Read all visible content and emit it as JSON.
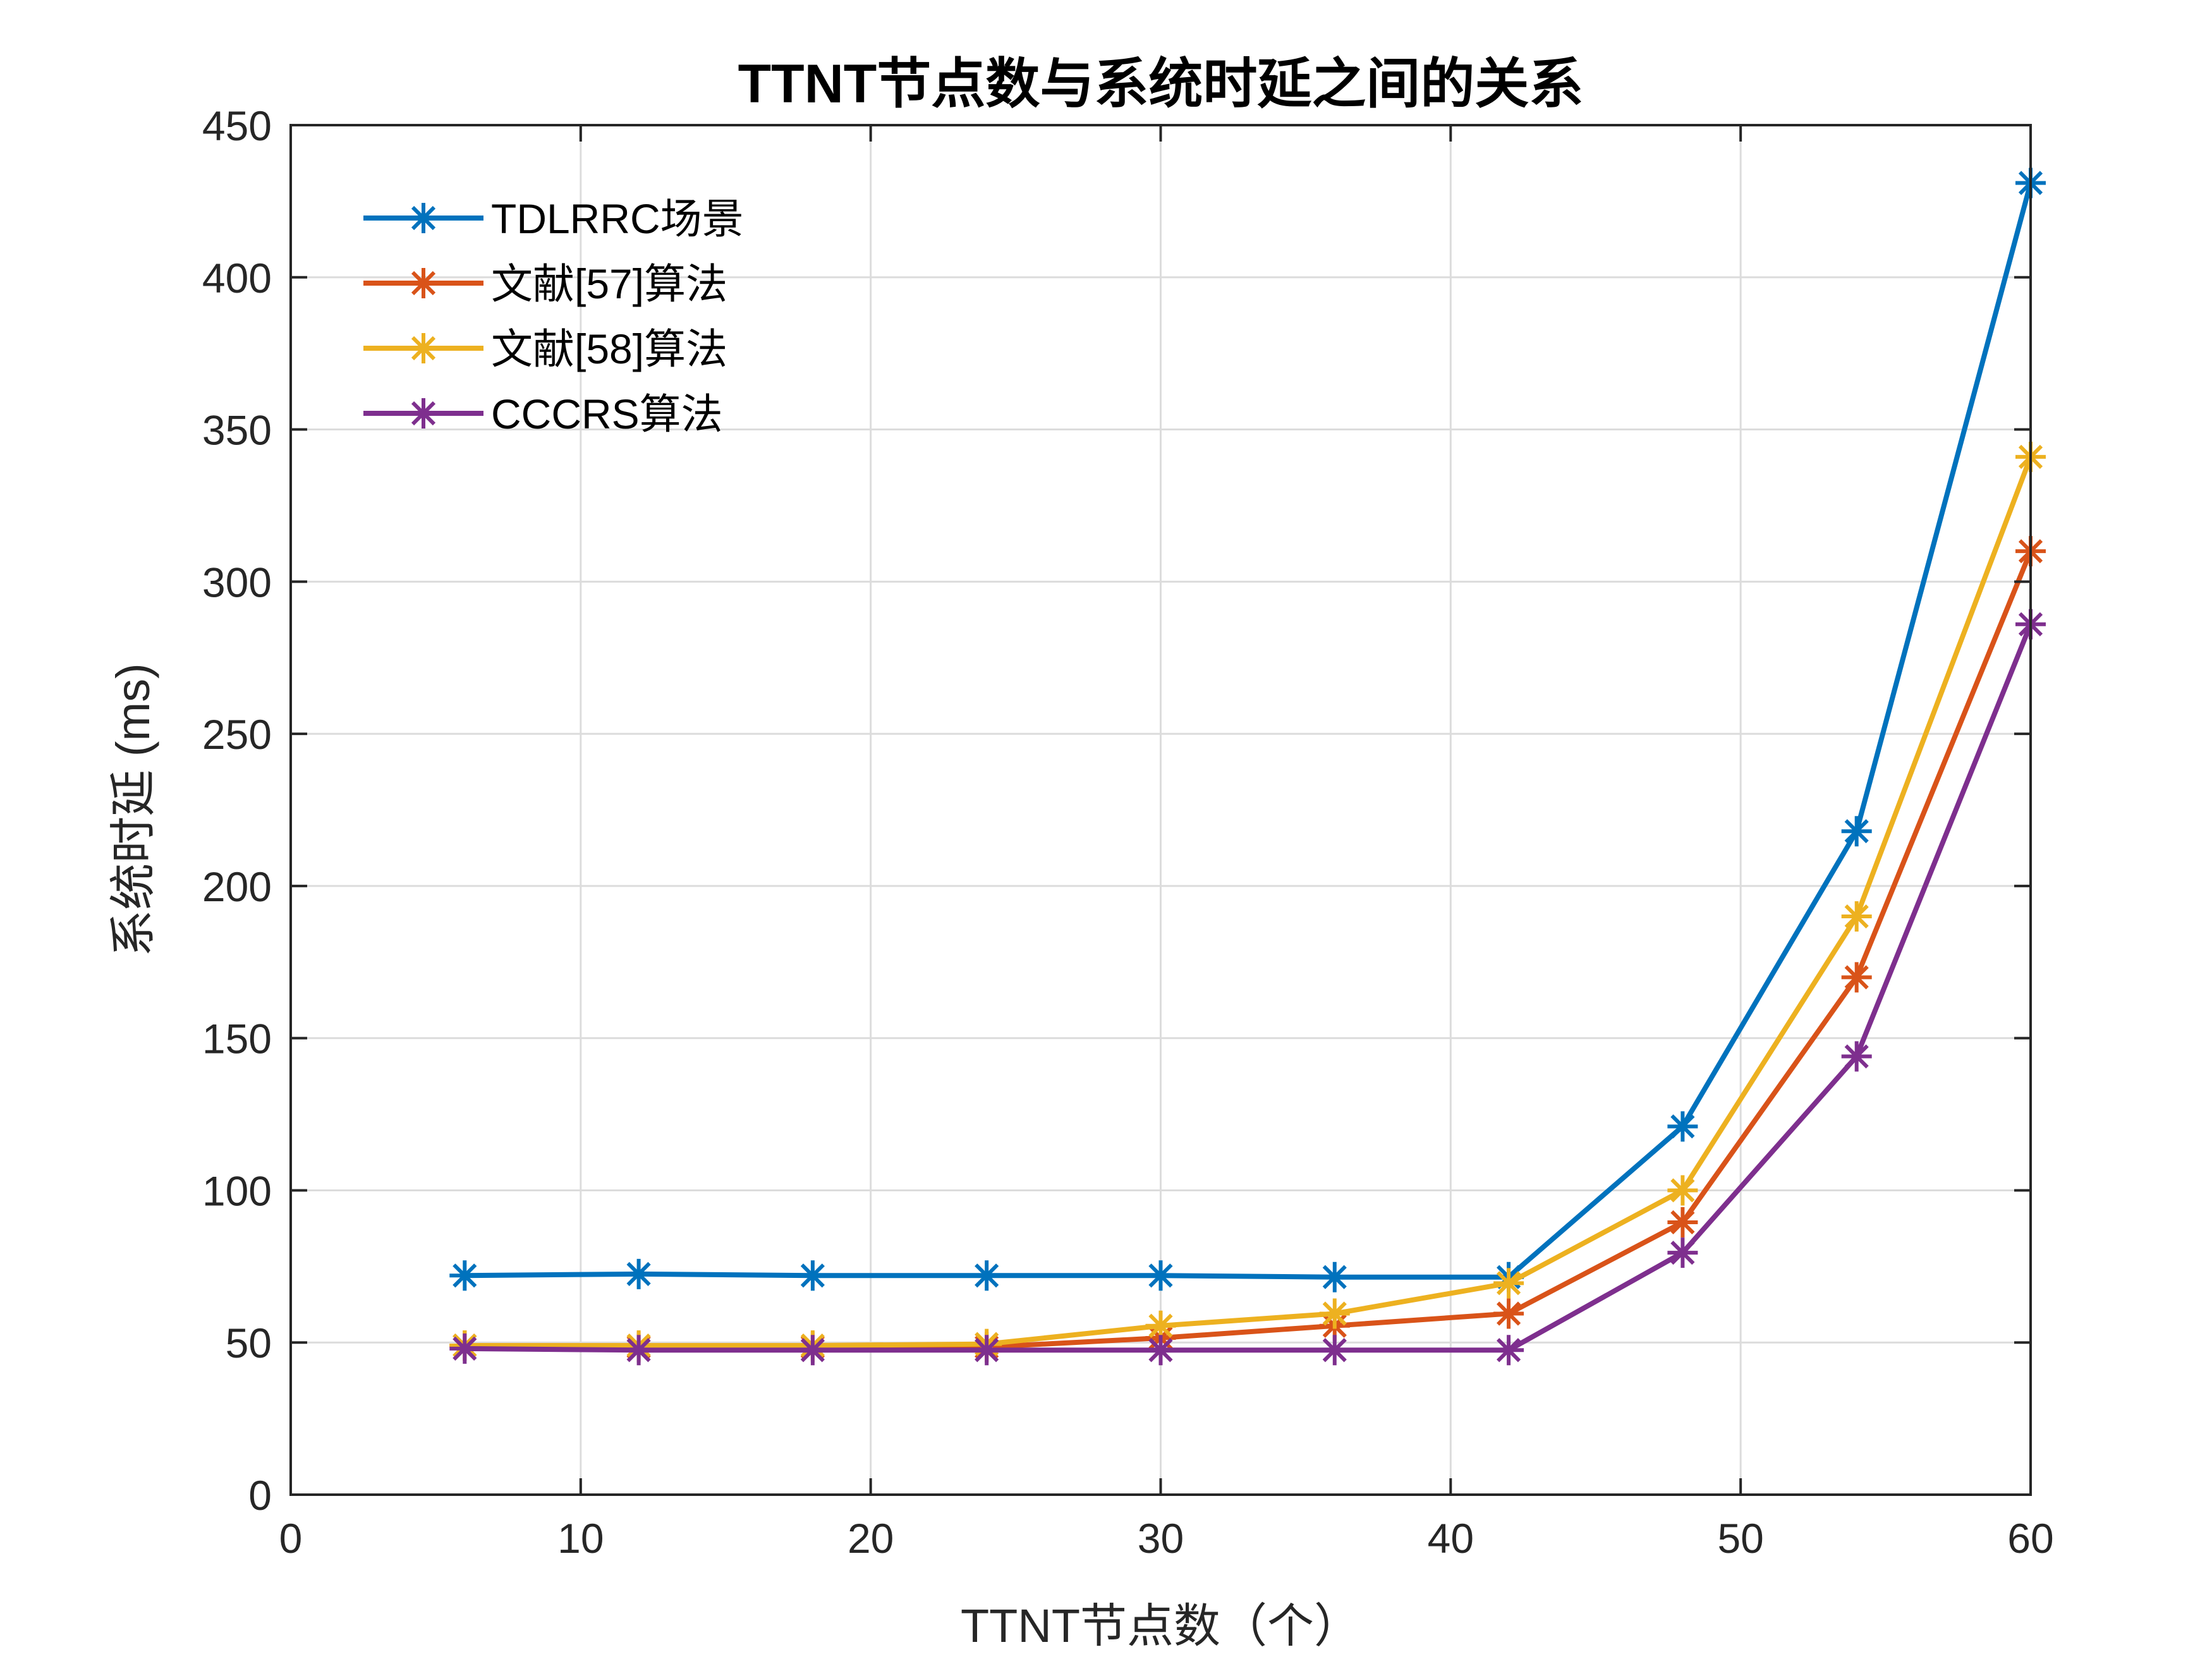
{
  "chart_data": {
    "type": "line",
    "title": "TTNT节点数与系统时延之间的关系",
    "xlabel": "TTNT节点数（个）",
    "ylabel": "系统时延 (ms)",
    "xlim": [
      0,
      60
    ],
    "ylim": [
      0,
      450
    ],
    "xticks": [
      0,
      10,
      20,
      30,
      40,
      50,
      60
    ],
    "yticks": [
      0,
      50,
      100,
      150,
      200,
      250,
      300,
      350,
      400,
      450
    ],
    "grid": true,
    "legend_position": "top-left",
    "marker": "asterisk",
    "x": [
      6,
      12,
      18,
      24,
      30,
      36,
      42,
      48,
      54,
      60
    ],
    "series": [
      {
        "name": "TDLRRC场景",
        "color": "#0072BD",
        "values": [
          72,
          72.5,
          72,
          72,
          72,
          71.5,
          71.5,
          121,
          218,
          431
        ]
      },
      {
        "name": "文献[57]算法",
        "color": "#D95319",
        "values": [
          49,
          48.5,
          48.5,
          48.5,
          51.5,
          55.5,
          59.5,
          89.5,
          170,
          310
        ]
      },
      {
        "name": "文献[58]算法",
        "color": "#EDB120",
        "values": [
          49,
          49,
          49,
          49.5,
          55.5,
          59.5,
          69.5,
          100,
          190,
          341
        ]
      },
      {
        "name": "CCCRS算法",
        "color": "#7E2F8E",
        "values": [
          48,
          47.5,
          47.5,
          47.5,
          47.5,
          47.5,
          47.5,
          79.5,
          144,
          286
        ]
      }
    ]
  }
}
